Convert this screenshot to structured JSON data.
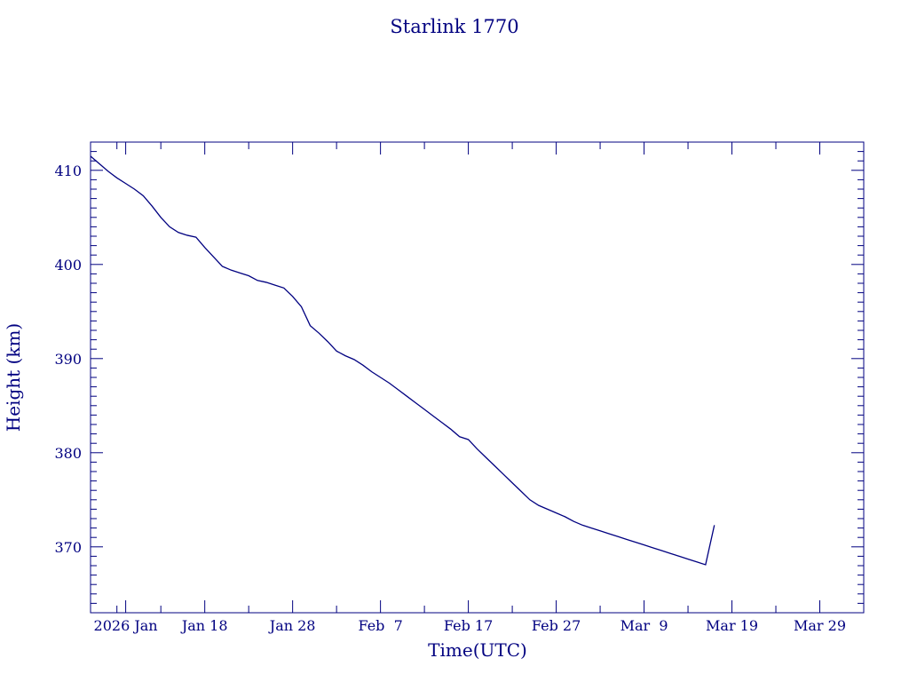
{
  "chart_data": {
    "type": "line",
    "title": "Starlink 1770",
    "xlabel": "Time(UTC)",
    "ylabel": "Height (km)",
    "color": "#000080",
    "grid": false,
    "legend": "none",
    "xlim": [
      "2026-01-05",
      "2026-04-03"
    ],
    "ylim": [
      363,
      413
    ],
    "x_ticks": [
      {
        "date": "2026-01-09",
        "label": "2026 Jan"
      },
      {
        "date": "2026-01-18",
        "label": "Jan 18"
      },
      {
        "date": "2026-01-28",
        "label": "Jan 28"
      },
      {
        "date": "2026-02-07",
        "label": "Feb  7"
      },
      {
        "date": "2026-02-17",
        "label": "Feb 17"
      },
      {
        "date": "2026-02-27",
        "label": "Feb 27"
      },
      {
        "date": "2026-03-09",
        "label": "Mar  9"
      },
      {
        "date": "2026-03-19",
        "label": "Mar 19"
      },
      {
        "date": "2026-03-29",
        "label": "Mar 29"
      }
    ],
    "y_ticks": [
      370,
      380,
      390,
      400,
      410
    ],
    "series": [
      {
        "x": [
          "2026-01-05",
          "2026-01-06",
          "2026-01-07",
          "2026-01-08",
          "2026-01-09",
          "2026-01-10",
          "2026-01-11",
          "2026-01-12",
          "2026-01-13",
          "2026-01-14",
          "2026-01-15",
          "2026-01-16",
          "2026-01-17",
          "2026-01-18",
          "2026-01-19",
          "2026-01-20",
          "2026-01-21",
          "2026-01-22",
          "2026-01-23",
          "2026-01-24",
          "2026-01-25",
          "2026-01-26",
          "2026-01-27",
          "2026-01-28",
          "2026-01-29",
          "2026-01-30",
          "2026-01-31",
          "2026-02-01",
          "2026-02-02",
          "2026-02-03",
          "2026-02-04",
          "2026-02-05",
          "2026-02-06",
          "2026-02-07",
          "2026-02-08",
          "2026-02-09",
          "2026-02-10",
          "2026-02-11",
          "2026-02-12",
          "2026-02-13",
          "2026-02-14",
          "2026-02-15",
          "2026-02-16",
          "2026-02-17",
          "2026-02-18",
          "2026-02-19",
          "2026-02-20",
          "2026-02-21",
          "2026-02-22",
          "2026-02-23",
          "2026-02-24",
          "2026-02-25",
          "2026-02-26",
          "2026-02-27",
          "2026-02-28",
          "2026-03-01",
          "2026-03-02",
          "2026-03-03",
          "2026-03-04",
          "2026-03-05",
          "2026-03-06",
          "2026-03-07",
          "2026-03-08",
          "2026-03-09",
          "2026-03-10",
          "2026-03-11",
          "2026-03-12",
          "2026-03-13",
          "2026-03-14",
          "2026-03-15",
          "2026-03-16",
          "2026-03-17"
        ],
        "y": [
          411.5,
          410.7,
          409.9,
          409.2,
          408.6,
          408.0,
          407.3,
          406.2,
          405.0,
          404.0,
          403.4,
          403.1,
          402.9,
          401.8,
          400.8,
          399.8,
          399.4,
          399.1,
          398.8,
          398.3,
          398.1,
          397.8,
          397.5,
          396.6,
          395.5,
          393.5,
          392.7,
          391.8,
          390.8,
          390.3,
          389.9,
          389.3,
          388.6,
          388.0,
          387.4,
          386.7,
          386.0,
          385.3,
          384.6,
          383.9,
          383.2,
          382.5,
          381.7,
          381.4,
          380.4,
          379.5,
          378.6,
          377.7,
          376.8,
          375.9,
          375.0,
          374.4,
          374.0,
          373.6,
          373.2,
          372.7,
          372.3,
          372.0,
          371.7,
          371.4,
          371.1,
          370.8,
          370.5,
          370.2,
          369.9,
          369.6,
          369.3,
          369.0,
          368.7,
          368.4,
          368.1,
          372.3
        ]
      }
    ]
  }
}
